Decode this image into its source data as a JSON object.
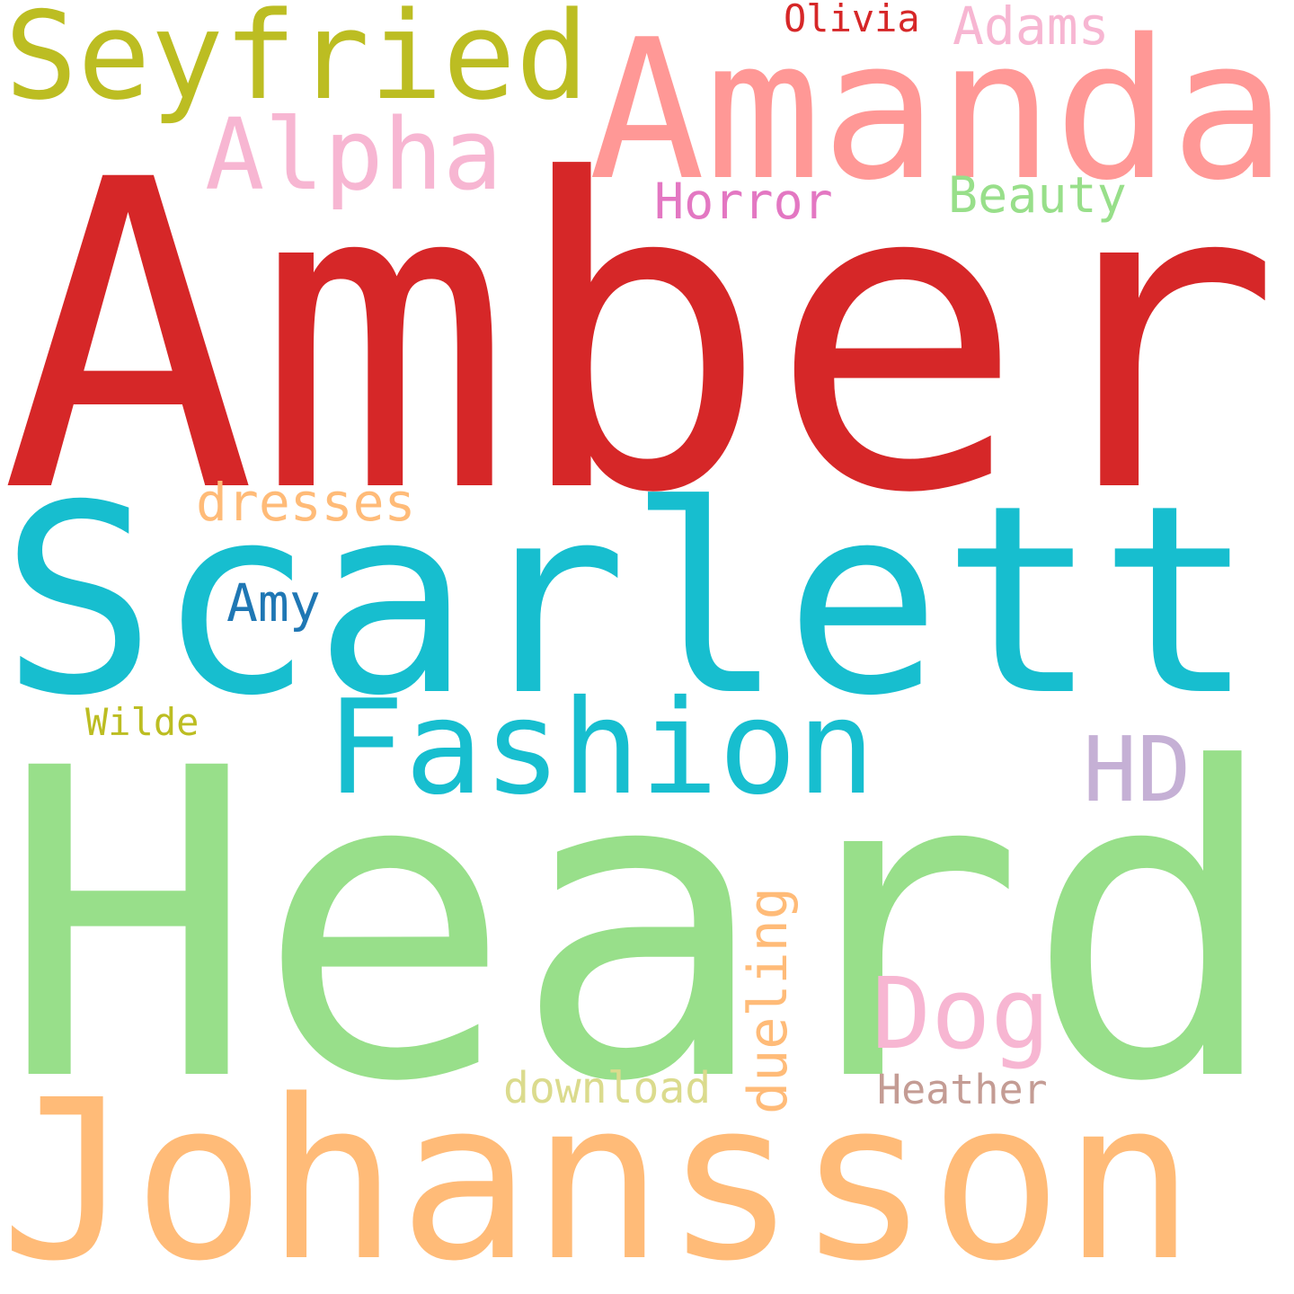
{
  "cloud": {
    "words": [
      {
        "text": "Amber",
        "color": "#d62728"
      },
      {
        "text": "Heard",
        "color": "#98df8a"
      },
      {
        "text": "Scarlett",
        "color": "#17becf"
      },
      {
        "text": "Johansson",
        "color": "#ffbb78"
      },
      {
        "text": "Amanda",
        "color": "#ff9896"
      },
      {
        "text": "Seyfried",
        "color": "#bcbd22"
      },
      {
        "text": "Fashion",
        "color": "#17becf"
      },
      {
        "text": "Alpha",
        "color": "#f7b6d2"
      },
      {
        "text": "Dog",
        "color": "#f7b6d2"
      },
      {
        "text": "HD",
        "color": "#c5b0d5"
      },
      {
        "text": "dresses",
        "color": "#ffbb78"
      },
      {
        "text": "Amy",
        "color": "#1f77b4"
      },
      {
        "text": "Adams",
        "color": "#f7b6d2"
      },
      {
        "text": "Horror",
        "color": "#e377c2"
      },
      {
        "text": "Beauty",
        "color": "#98df8a"
      },
      {
        "text": "download",
        "color": "#dbdb8d"
      },
      {
        "text": "Heather",
        "color": "#c49c94"
      },
      {
        "text": "Olivia",
        "color": "#d62728"
      },
      {
        "text": "Wilde",
        "color": "#bcbd22"
      },
      {
        "text": "dueling",
        "color": "#ffbb78"
      }
    ]
  }
}
